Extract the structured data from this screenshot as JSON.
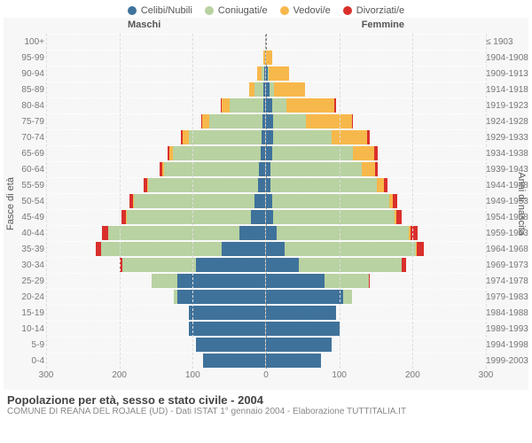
{
  "legend": {
    "items": [
      {
        "label": "Celibi/Nubili",
        "color": "#3f729b"
      },
      {
        "label": "Coniugati/e",
        "color": "#b8d2a1"
      },
      {
        "label": "Vedovi/e",
        "color": "#f7b84b"
      },
      {
        "label": "Divorziati/e",
        "color": "#d9302c"
      }
    ]
  },
  "chart": {
    "type": "population-pyramid",
    "male_label": "Maschi",
    "female_label": "Femmine",
    "y_axis_left_title": "Fasce di età",
    "y_axis_right_title": "Anni di nascita",
    "x_ticks": [
      300,
      200,
      100,
      0,
      100,
      200,
      300
    ],
    "x_max": 300,
    "background_color": "#f7f7f7",
    "grid_color": "#dddddd",
    "tick_font_size": 10,
    "label_color": "#777777",
    "colors": {
      "celibi": "#3f729b",
      "coniugati": "#b8d2a1",
      "vedovi": "#f7b84b",
      "divorziati": "#d9302c"
    },
    "rows": [
      {
        "age": "100+",
        "birth": "≤ 1903",
        "m": {
          "c": 0,
          "co": 0,
          "v": 0,
          "d": 0
        },
        "f": {
          "c": 0,
          "co": 0,
          "v": 0,
          "d": 0
        }
      },
      {
        "age": "95-99",
        "birth": "1904-1908",
        "m": {
          "c": 0,
          "co": 0,
          "v": 2,
          "d": 0
        },
        "f": {
          "c": 0,
          "co": 0,
          "v": 8,
          "d": 0
        }
      },
      {
        "age": "90-94",
        "birth": "1909-1913",
        "m": {
          "c": 1,
          "co": 4,
          "v": 6,
          "d": 0
        },
        "f": {
          "c": 2,
          "co": 2,
          "v": 28,
          "d": 0
        }
      },
      {
        "age": "85-89",
        "birth": "1914-1918",
        "m": {
          "c": 2,
          "co": 12,
          "v": 8,
          "d": 0
        },
        "f": {
          "c": 5,
          "co": 6,
          "v": 42,
          "d": 0
        }
      },
      {
        "age": "80-84",
        "birth": "1919-1923",
        "m": {
          "c": 3,
          "co": 45,
          "v": 12,
          "d": 1
        },
        "f": {
          "c": 8,
          "co": 20,
          "v": 65,
          "d": 2
        }
      },
      {
        "age": "75-79",
        "birth": "1924-1928",
        "m": {
          "c": 4,
          "co": 72,
          "v": 10,
          "d": 1
        },
        "f": {
          "c": 10,
          "co": 45,
          "v": 62,
          "d": 2
        }
      },
      {
        "age": "70-74",
        "birth": "1929-1933",
        "m": {
          "c": 5,
          "co": 100,
          "v": 8,
          "d": 2
        },
        "f": {
          "c": 10,
          "co": 80,
          "v": 48,
          "d": 3
        }
      },
      {
        "age": "65-69",
        "birth": "1934-1938",
        "m": {
          "c": 6,
          "co": 120,
          "v": 5,
          "d": 3
        },
        "f": {
          "c": 8,
          "co": 110,
          "v": 30,
          "d": 4
        }
      },
      {
        "age": "60-64",
        "birth": "1939-1943",
        "m": {
          "c": 8,
          "co": 130,
          "v": 3,
          "d": 3
        },
        "f": {
          "c": 6,
          "co": 125,
          "v": 18,
          "d": 4
        }
      },
      {
        "age": "55-59",
        "birth": "1944-1948",
        "m": {
          "c": 10,
          "co": 150,
          "v": 2,
          "d": 4
        },
        "f": {
          "c": 6,
          "co": 145,
          "v": 10,
          "d": 5
        }
      },
      {
        "age": "50-54",
        "birth": "1949-1953",
        "m": {
          "c": 15,
          "co": 165,
          "v": 1,
          "d": 5
        },
        "f": {
          "c": 8,
          "co": 160,
          "v": 5,
          "d": 6
        }
      },
      {
        "age": "45-49",
        "birth": "1954-1958",
        "m": {
          "c": 20,
          "co": 170,
          "v": 1,
          "d": 6
        },
        "f": {
          "c": 10,
          "co": 165,
          "v": 3,
          "d": 7
        }
      },
      {
        "age": "40-44",
        "birth": "1959-1963",
        "m": {
          "c": 35,
          "co": 180,
          "v": 0,
          "d": 8
        },
        "f": {
          "c": 15,
          "co": 180,
          "v": 2,
          "d": 10
        }
      },
      {
        "age": "35-39",
        "birth": "1964-1968",
        "m": {
          "c": 60,
          "co": 165,
          "v": 0,
          "d": 7
        },
        "f": {
          "c": 25,
          "co": 180,
          "v": 1,
          "d": 9
        }
      },
      {
        "age": "30-34",
        "birth": "1969-1973",
        "m": {
          "c": 95,
          "co": 100,
          "v": 0,
          "d": 4
        },
        "f": {
          "c": 45,
          "co": 140,
          "v": 0,
          "d": 6
        }
      },
      {
        "age": "25-29",
        "birth": "1974-1978",
        "m": {
          "c": 120,
          "co": 35,
          "v": 0,
          "d": 1
        },
        "f": {
          "c": 80,
          "co": 60,
          "v": 0,
          "d": 2
        }
      },
      {
        "age": "20-24",
        "birth": "1979-1983",
        "m": {
          "c": 120,
          "co": 5,
          "v": 0,
          "d": 0
        },
        "f": {
          "c": 105,
          "co": 12,
          "v": 0,
          "d": 0
        }
      },
      {
        "age": "15-19",
        "birth": "1984-1988",
        "m": {
          "c": 105,
          "co": 0,
          "v": 0,
          "d": 0
        },
        "f": {
          "c": 95,
          "co": 0,
          "v": 0,
          "d": 0
        }
      },
      {
        "age": "10-14",
        "birth": "1989-1993",
        "m": {
          "c": 105,
          "co": 0,
          "v": 0,
          "d": 0
        },
        "f": {
          "c": 100,
          "co": 0,
          "v": 0,
          "d": 0
        }
      },
      {
        "age": "5-9",
        "birth": "1994-1998",
        "m": {
          "c": 95,
          "co": 0,
          "v": 0,
          "d": 0
        },
        "f": {
          "c": 90,
          "co": 0,
          "v": 0,
          "d": 0
        }
      },
      {
        "age": "0-4",
        "birth": "1999-2003",
        "m": {
          "c": 85,
          "co": 0,
          "v": 0,
          "d": 0
        },
        "f": {
          "c": 75,
          "co": 0,
          "v": 0,
          "d": 0
        }
      }
    ]
  },
  "footer": {
    "title": "Popolazione per età, sesso e stato civile - 2004",
    "subtitle": "COMUNE DI REANA DEL ROJALE (UD) - Dati ISTAT 1° gennaio 2004 - Elaborazione TUTTITALIA.IT"
  }
}
